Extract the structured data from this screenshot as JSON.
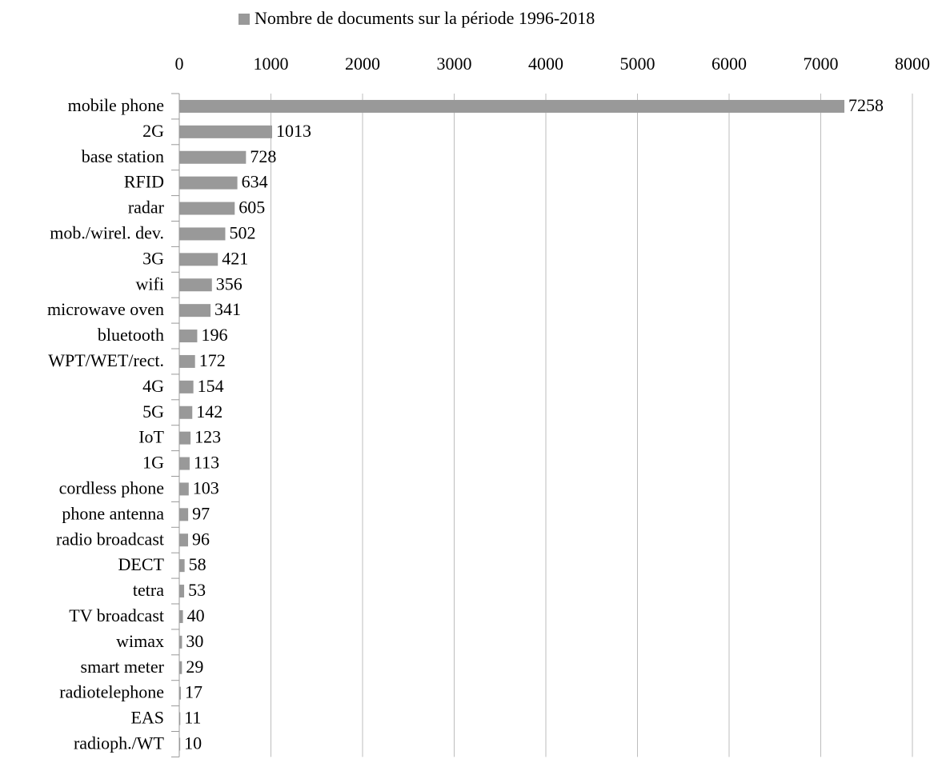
{
  "chart_data": {
    "type": "bar",
    "orientation": "horizontal",
    "categories": [
      "mobile phone",
      "2G",
      "base station",
      "RFID",
      "radar",
      "mob./wirel. dev.",
      "3G",
      "wifi",
      "microwave oven",
      "bluetooth",
      "WPT/WET/rect.",
      "4G",
      "5G",
      "IoT",
      "1G",
      "cordless phone",
      "phone antenna",
      "radio broadcast",
      "DECT",
      "tetra",
      "TV broadcast",
      "wimax",
      "smart meter",
      "radiotelephone",
      "EAS",
      "radioph./WT"
    ],
    "series": [
      {
        "name": "Nombre de documents sur la période 1996-2018",
        "color": "#999999",
        "values": [
          7258,
          1013,
          728,
          634,
          605,
          502,
          421,
          356,
          341,
          196,
          172,
          154,
          142,
          123,
          113,
          103,
          97,
          96,
          58,
          53,
          40,
          30,
          29,
          17,
          11,
          10
        ]
      }
    ],
    "xlim": [
      0,
      8000
    ],
    "xticks": [
      0,
      1000,
      2000,
      3000,
      4000,
      5000,
      6000,
      7000,
      8000
    ],
    "grid": true,
    "legend": "top"
  }
}
